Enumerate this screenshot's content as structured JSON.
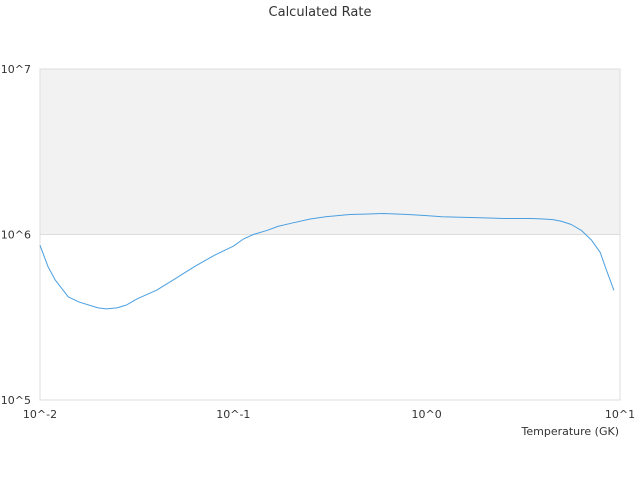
{
  "chart_data": {
    "type": "line",
    "title": "Calculated Rate",
    "xlabel": "Temperature (GK)",
    "ylabel": "",
    "x_scale": "log",
    "y_scale": "log",
    "xlim": [
      0.01,
      10
    ],
    "ylim": [
      100000,
      10000000
    ],
    "x_ticks": [
      "10^-2",
      "10^-1",
      "10^0",
      "10^1"
    ],
    "y_ticks": [
      "10^5",
      "10^6",
      "10^7"
    ],
    "grid": false,
    "band": {
      "from": 1000000,
      "to": 10000000,
      "color": "#f2f2f2"
    },
    "series": [
      {
        "color": "#4a9fe0",
        "x": [
          0.01,
          0.011,
          0.012,
          0.014,
          0.016,
          0.02,
          0.022,
          0.025,
          0.028,
          0.032,
          0.04,
          0.05,
          0.063,
          0.08,
          0.1,
          0.113,
          0.127,
          0.15,
          0.17,
          0.2,
          0.25,
          0.3,
          0.4,
          0.5,
          0.6,
          0.8,
          1.0,
          1.2,
          1.5,
          2.0,
          2.5,
          3.0,
          3.5,
          4.0,
          4.5,
          5.0,
          5.6,
          6.3,
          7.1,
          7.9,
          8.5,
          9.3
        ],
        "y": [
          860000,
          640000,
          530000,
          420000,
          390000,
          360000,
          355000,
          360000,
          375000,
          410000,
          460000,
          540000,
          640000,
          750000,
          850000,
          940000,
          1000000,
          1060000,
          1120000,
          1170000,
          1240000,
          1280000,
          1320000,
          1330000,
          1340000,
          1320000,
          1300000,
          1280000,
          1270000,
          1260000,
          1250000,
          1250000,
          1250000,
          1240000,
          1230000,
          1200000,
          1150000,
          1060000,
          930000,
          780000,
          610000,
          460000
        ]
      }
    ]
  }
}
